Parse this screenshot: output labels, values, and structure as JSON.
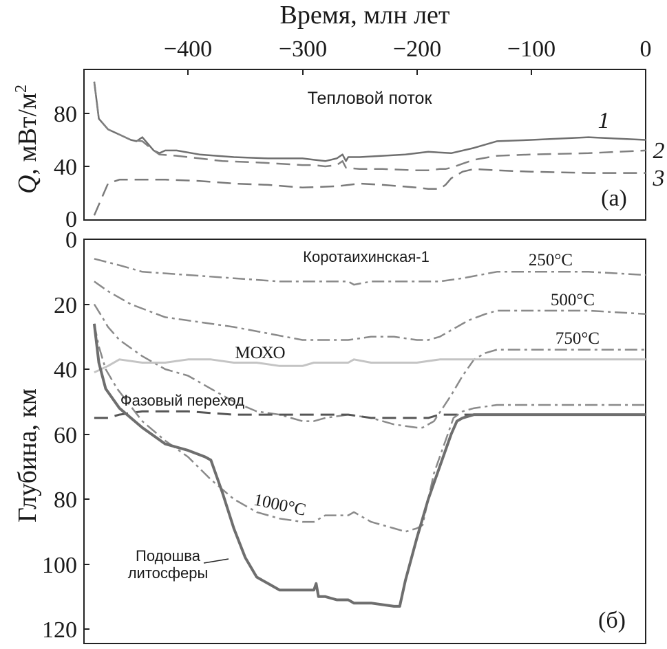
{
  "figure": {
    "top_axis_label": "Время, млн лет",
    "top_ticks": [
      "−400",
      "−300",
      "−200",
      "−100",
      "0"
    ],
    "panel_a": {
      "ylabel_var": "Q",
      "ylabel_unit": ", мВт/м",
      "ylabel_sup": "2",
      "title": "Тепловой поток",
      "letter": "(а)",
      "yticks": [
        "80",
        "40",
        "0"
      ],
      "curve_labels": [
        "1",
        "2",
        "3"
      ]
    },
    "panel_b": {
      "ylabel": "Глубина, км",
      "letter": "(б)",
      "yticks": [
        "0",
        "20",
        "40",
        "60",
        "80",
        "100",
        "120"
      ],
      "annotations": {
        "well": "Коротаихинская-1",
        "iso250": "250°C",
        "iso500": "500°C",
        "iso750": "750°C",
        "moho": "МОХО",
        "phase": "Фазовый переход",
        "iso1000": "1000°C",
        "lab_line1": "Подошва",
        "lab_line2": "литосферы"
      }
    }
  },
  "colors": {
    "curve_1": "#6f6f6f",
    "curve_2": "#808080",
    "curve_3": "#7a7a7a",
    "isotherms": "#8a8a8a",
    "moho": "#c4c4c4",
    "phase_transition": "#555555",
    "lithosphere_base": "#6e6e6e",
    "axes": "#222222"
  },
  "chart_data": [
    {
      "type": "line",
      "title": "Тепловой поток",
      "xlabel": "Время, млн лет",
      "ylabel": "Q, мВт/м2",
      "xlim": [
        -485,
        0
      ],
      "ylim": [
        0,
        110
      ],
      "series": [
        {
          "name": "1",
          "style": "solid",
          "x": [
            -482,
            -478,
            -470,
            -460,
            -450,
            -445,
            -440,
            -430,
            -425,
            -420,
            -410,
            -390,
            -360,
            -330,
            -300,
            -290,
            -280,
            -270,
            -265,
            -262,
            -260,
            -250,
            -230,
            -210,
            -190,
            -170,
            -150,
            -130,
            -100,
            -50,
            0
          ],
          "y": [
            104,
            76,
            68,
            64,
            60,
            59,
            62,
            52,
            50,
            52,
            52,
            49,
            47,
            46,
            46,
            45,
            44,
            46,
            49,
            44,
            47,
            47,
            48,
            49,
            51,
            50,
            54,
            59,
            60,
            62,
            60
          ]
        },
        {
          "name": "2",
          "style": "dashed",
          "x": [
            -482,
            -478,
            -470,
            -460,
            -450,
            -440,
            -430,
            -425,
            -410,
            -390,
            -370,
            -340,
            -300,
            -290,
            -280,
            -270,
            -265,
            -262,
            -250,
            -230,
            -200,
            -190,
            -180,
            -175,
            -170,
            -160,
            -150,
            -130,
            -100,
            -50,
            0
          ],
          "y": [
            104,
            76,
            68,
            64,
            60,
            59,
            52,
            49,
            48,
            46,
            44,
            43,
            41,
            41,
            40,
            41,
            44,
            39,
            38,
            38,
            37,
            37,
            38,
            38,
            39,
            42,
            45,
            48,
            49,
            50,
            52
          ]
        },
        {
          "name": "3",
          "style": "dashed",
          "x": [
            -482,
            -470,
            -460,
            -450,
            -420,
            -390,
            -360,
            -330,
            -300,
            -270,
            -250,
            -230,
            -200,
            -190,
            -180,
            -175,
            -170,
            -160,
            -150,
            -130,
            -100,
            -50,
            0
          ],
          "y": [
            3,
            27,
            30,
            30,
            30,
            29,
            27,
            26,
            24,
            25,
            27,
            26,
            24,
            23,
            23,
            26,
            31,
            36,
            38,
            37,
            36,
            35,
            35
          ]
        }
      ]
    },
    {
      "type": "line",
      "xlabel": "Время, млн лет",
      "ylabel": "Глубина, км",
      "xlim": [
        -485,
        0
      ],
      "ylim": [
        120,
        0
      ],
      "series": [
        {
          "name": "250°C",
          "style": "dash-dot",
          "x": [
            -482,
            -460,
            -440,
            -400,
            -360,
            -320,
            -300,
            -280,
            -260,
            -255,
            -240,
            -200,
            -180,
            -160,
            -130,
            -100,
            -50,
            0
          ],
          "y": [
            6,
            8,
            10,
            11,
            12,
            13,
            13,
            13,
            13,
            14,
            13,
            13,
            13,
            12,
            10,
            10,
            10,
            11
          ]
        },
        {
          "name": "500°C",
          "style": "dash-dot",
          "x": [
            -482,
            -470,
            -450,
            -420,
            -400,
            -360,
            -330,
            -300,
            -280,
            -260,
            -240,
            -220,
            -200,
            -190,
            -180,
            -170,
            -155,
            -140,
            -130,
            -100,
            -50,
            0
          ],
          "y": [
            13,
            16,
            20,
            24,
            25,
            27,
            29,
            31,
            31,
            31,
            30,
            30,
            31,
            31,
            30,
            28,
            25,
            23,
            22,
            22,
            22,
            23
          ]
        },
        {
          "name": "750°C",
          "style": "dash-dot",
          "x": [
            -482,
            -475,
            -470,
            -460,
            -440,
            -420,
            -400,
            -380,
            -360,
            -340,
            -320,
            -300,
            -290,
            -280,
            -260,
            -240,
            -220,
            -200,
            -195,
            -185,
            -170,
            -160,
            -150,
            -140,
            -130,
            -100,
            -50,
            0
          ],
          "y": [
            20,
            24,
            27,
            31,
            36,
            40,
            42,
            46,
            50,
            53,
            54,
            56,
            56,
            55,
            54,
            55,
            57,
            58,
            58,
            56,
            48,
            42,
            37,
            35,
            34,
            34,
            34,
            34
          ]
        },
        {
          "name": "МОХО",
          "style": "solid",
          "x": [
            -482,
            -470,
            -460,
            -440,
            -420,
            -400,
            -380,
            -360,
            -340,
            -320,
            -300,
            -290,
            -280,
            -260,
            -255,
            -240,
            -220,
            -200,
            -180,
            -160,
            -140,
            -100,
            -50,
            0
          ],
          "y": [
            41,
            39,
            37,
            38,
            38,
            37,
            37,
            38,
            38,
            39,
            39,
            38,
            38,
            38,
            37,
            38,
            38,
            38,
            37,
            37,
            37,
            37,
            37,
            37
          ]
        },
        {
          "name": "Фазовый переход",
          "style": "dashed",
          "x": [
            -482,
            -470,
            -460,
            -440,
            -400,
            -360,
            -320,
            -300,
            -260,
            -240,
            -220,
            -200,
            -190,
            -180,
            -170,
            -160,
            -140,
            -120,
            -100,
            -50,
            0
          ],
          "y": [
            55,
            55,
            54,
            53,
            53,
            54,
            54,
            54,
            54,
            55,
            55,
            55,
            55,
            54,
            54,
            54,
            54,
            54,
            54,
            54,
            54
          ]
        },
        {
          "name": "1000°C",
          "style": "dash-dot",
          "x": [
            -482,
            -478,
            -472,
            -462,
            -440,
            -420,
            -400,
            -380,
            -360,
            -340,
            -320,
            -300,
            -290,
            -280,
            -260,
            -255,
            -240,
            -220,
            -210,
            -200,
            -195,
            -190,
            -185,
            -175,
            -168,
            -160,
            -150,
            -130,
            -100,
            -50,
            0
          ],
          "y": [
            26,
            33,
            40,
            46,
            56,
            62,
            67,
            74,
            80,
            84,
            86,
            87,
            87,
            85,
            85,
            84,
            87,
            89,
            90,
            89,
            88,
            80,
            72,
            62,
            55,
            53,
            52,
            51,
            51,
            51,
            51
          ]
        },
        {
          "name": "Подошва литосферы",
          "style": "solid",
          "x": [
            -482,
            -478,
            -472,
            -460,
            -440,
            -420,
            -400,
            -385,
            -380,
            -370,
            -360,
            -350,
            -340,
            -330,
            -320,
            -310,
            -300,
            -290,
            -288,
            -286,
            -280,
            -270,
            -260,
            -255,
            -250,
            -240,
            -220,
            -215,
            -210,
            -200,
            -190,
            -180,
            -170,
            -165,
            -160,
            -150,
            -140,
            -130,
            -100,
            -50,
            0
          ],
          "y": [
            26,
            38,
            46,
            52,
            58,
            63,
            65,
            67,
            68,
            78,
            89,
            98,
            104,
            106,
            108,
            108,
            108,
            108,
            106,
            110,
            110,
            111,
            111,
            112,
            112,
            112,
            113,
            113,
            105,
            92,
            80,
            70,
            60,
            56,
            55,
            54,
            54,
            54,
            54,
            54,
            54
          ]
        }
      ]
    }
  ]
}
